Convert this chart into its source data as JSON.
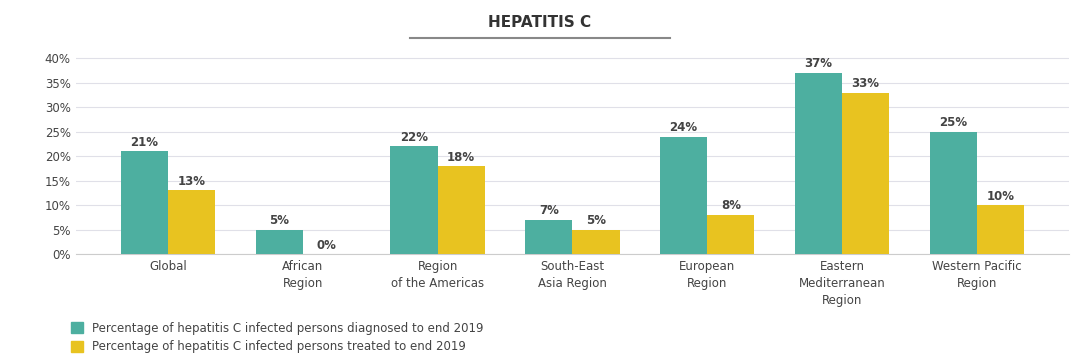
{
  "title": "HEPATITIS C",
  "categories": [
    "Global",
    "African\nRegion",
    "Region\nof the Americas",
    "South-East\nAsia Region",
    "European\nRegion",
    "Eastern\nMediterranean\nRegion",
    "Western Pacific\nRegion"
  ],
  "diagnosed": [
    21,
    5,
    22,
    7,
    24,
    37,
    25
  ],
  "treated": [
    13,
    0,
    18,
    5,
    8,
    33,
    10
  ],
  "diagnosed_color": "#4DAFA0",
  "treated_color": "#E8C320",
  "legend_diagnosed": "Percentage of hepatitis C infected persons diagnosed to end 2019",
  "legend_treated": "Percentage of hepatitis C infected persons treated to end 2019",
  "ylim": [
    0,
    43
  ],
  "yticks": [
    0,
    5,
    10,
    15,
    20,
    25,
    30,
    35,
    40
  ],
  "ytick_labels": [
    "0%",
    "5%",
    "10%",
    "15%",
    "20%",
    "25%",
    "30%",
    "35%",
    "40%"
  ],
  "background_color": "#ffffff",
  "bar_width": 0.35,
  "title_fontsize": 11,
  "label_fontsize": 8.5,
  "tick_fontsize": 8.5,
  "legend_fontsize": 8.5,
  "grid_color": "#e0e0e8",
  "spine_color": "#cccccc",
  "text_color": "#444444"
}
